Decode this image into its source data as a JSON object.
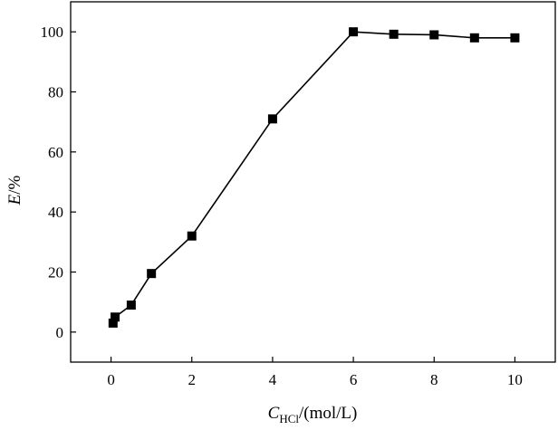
{
  "chart_data": {
    "type": "line",
    "title": "",
    "xlabel": {
      "var": "C",
      "sub": "HCl",
      "unit": "/(mol/L)"
    },
    "ylabel": {
      "var": "E",
      "unit": "/%"
    },
    "xlim": [
      -1,
      11
    ],
    "ylim": [
      -10,
      110
    ],
    "xticks": [
      0,
      2,
      4,
      6,
      8,
      10
    ],
    "yticks": [
      0,
      20,
      40,
      60,
      80,
      100
    ],
    "series": [
      {
        "name": "E",
        "marker": "square",
        "color": "#000000",
        "x": [
          0.05,
          0.1,
          0.5,
          1,
          2,
          4,
          6,
          7,
          8,
          9,
          10
        ],
        "y": [
          3,
          5,
          9,
          19.5,
          32,
          71,
          100,
          99.2,
          99,
          98,
          98
        ]
      }
    ]
  }
}
